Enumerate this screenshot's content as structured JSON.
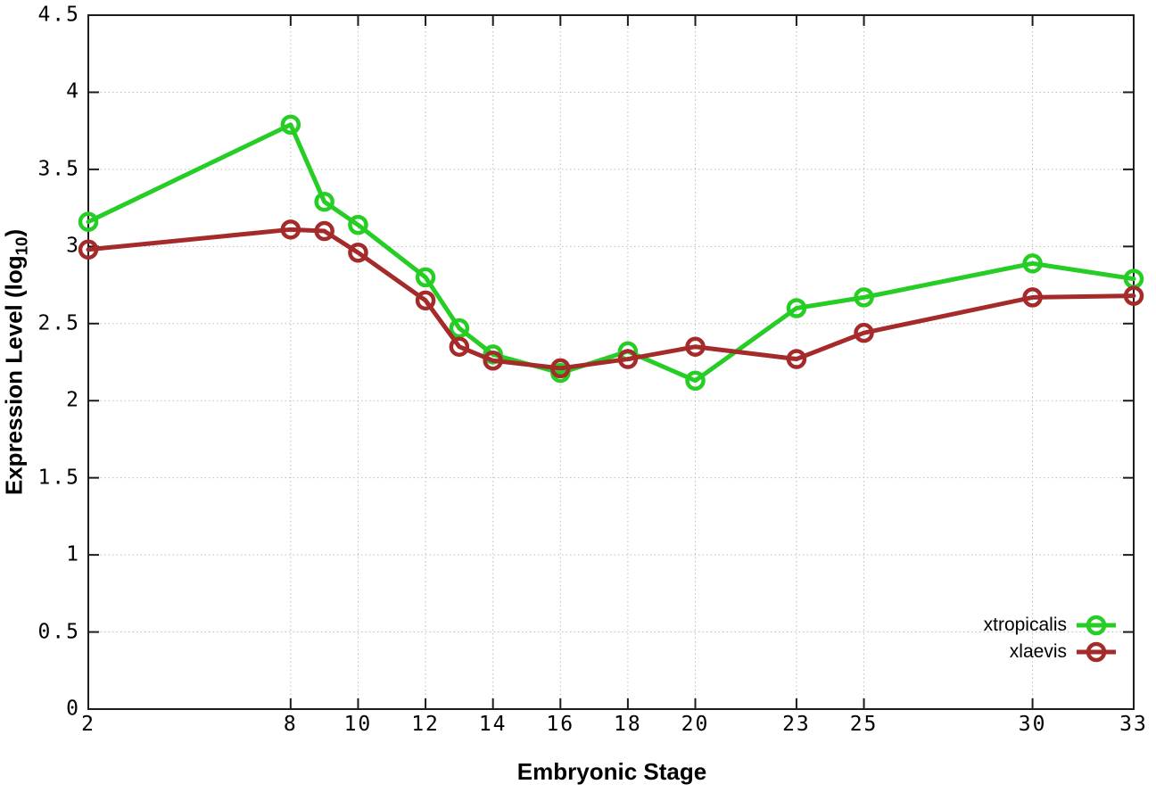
{
  "chart_data": {
    "type": "line",
    "title": "",
    "xlabel": "Embryonic Stage",
    "ylabel_prefix": "Expression Level (log",
    "ylabel_subscript": "10",
    "ylabel_suffix": ")",
    "x": [
      2,
      8,
      9,
      10,
      12,
      13,
      14,
      16,
      18,
      20,
      23,
      25,
      30,
      33
    ],
    "series": [
      {
        "name": "xtropicalis",
        "color": "#25cd25",
        "values": [
          3.16,
          3.79,
          3.29,
          3.14,
          2.8,
          2.47,
          2.3,
          2.18,
          2.32,
          2.13,
          2.6,
          2.67,
          2.89,
          2.79
        ]
      },
      {
        "name": "xlaevis",
        "color": "#a52a2a",
        "values": [
          2.98,
          3.11,
          3.1,
          2.96,
          2.65,
          2.35,
          2.26,
          2.21,
          2.27,
          2.35,
          2.27,
          2.44,
          2.67,
          2.68
        ]
      }
    ],
    "xtick_values": [
      2,
      8,
      10,
      12,
      14,
      16,
      18,
      20,
      23,
      25,
      30,
      33
    ],
    "xtick_labels": [
      "2",
      "8",
      "10",
      "12",
      "14",
      "16",
      "18",
      "20",
      "23",
      "25",
      "30",
      "33"
    ],
    "ytick_values": [
      0,
      0.5,
      1,
      1.5,
      2,
      2.5,
      3,
      3.5,
      4,
      4.5
    ],
    "ytick_labels": [
      "0",
      "0.5",
      "1",
      "1.5",
      "2",
      "2.5",
      "3",
      "3.5",
      "4",
      "4.5"
    ],
    "xlim": [
      2,
      33
    ],
    "ylim": [
      0,
      4.5
    ],
    "grid": true,
    "legend_position": "bottom-right",
    "layout": {
      "background": "#ffffff",
      "axis_color": "#1c1c1c",
      "grid_color": "#bdbdbd",
      "text_color": "#000000"
    }
  }
}
